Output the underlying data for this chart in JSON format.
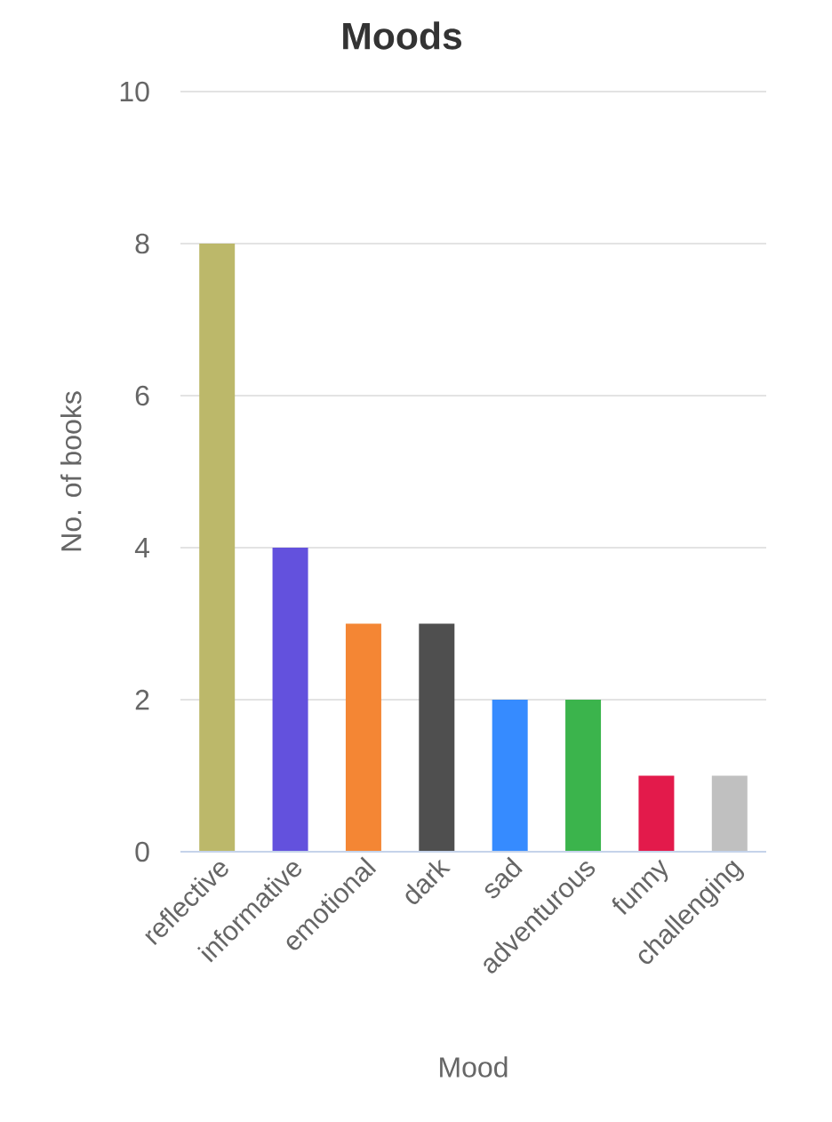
{
  "chart_data": {
    "type": "bar",
    "title": "Moods",
    "xlabel": "Mood",
    "ylabel": "No. of books",
    "categories": [
      "reflective",
      "informative",
      "emotional",
      "dark",
      "sad",
      "adventurous",
      "funny",
      "challenging"
    ],
    "values": [
      8,
      4,
      3,
      3,
      2,
      2,
      1,
      1
    ],
    "colors": [
      "#bcb86a",
      "#6351dd",
      "#f48634",
      "#4f4f4f",
      "#368bff",
      "#3bb44c",
      "#e31a4b",
      "#c0c0c0"
    ],
    "ylim": [
      0,
      10
    ],
    "yticks": [
      0,
      2,
      4,
      6,
      8,
      10
    ],
    "grid": "y"
  }
}
